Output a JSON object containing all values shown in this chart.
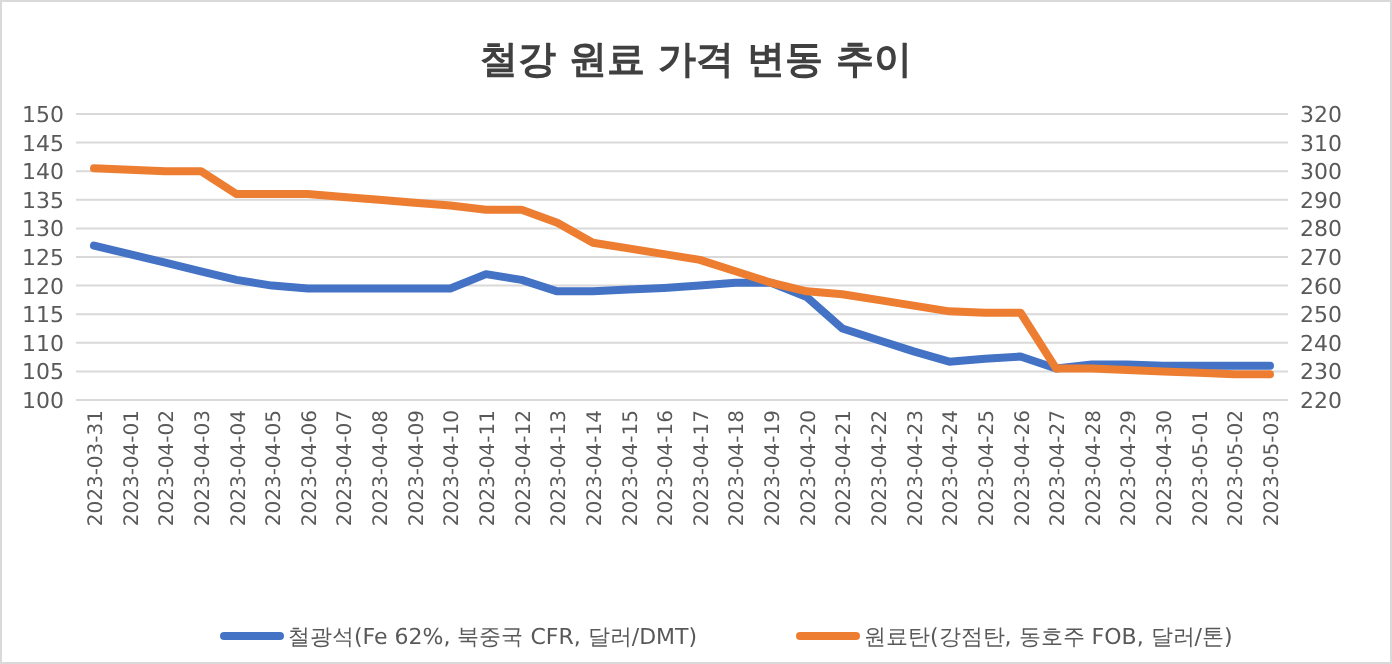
{
  "chart_data": {
    "type": "line",
    "title": "철강 원료 가격 변동 추이",
    "categories": [
      "2023-03-31",
      "2023-04-01",
      "2023-04-02",
      "2023-04-03",
      "2023-04-04",
      "2023-04-05",
      "2023-04-06",
      "2023-04-07",
      "2023-04-08",
      "2023-04-09",
      "2023-04-10",
      "2023-04-11",
      "2023-04-12",
      "2023-04-13",
      "2023-04-14",
      "2023-04-15",
      "2023-04-16",
      "2023-04-17",
      "2023-04-18",
      "2023-04-19",
      "2023-04-20",
      "2023-04-21",
      "2023-04-22",
      "2023-04-23",
      "2023-04-24",
      "2023-04-25",
      "2023-04-26",
      "2023-04-27",
      "2023-04-28",
      "2023-04-29",
      "2023-04-30",
      "2023-05-01",
      "2023-05-02",
      "2023-05-03"
    ],
    "series": [
      {
        "name": "철광석(Fe 62%, 북중국 CFR, 달러/DMT)",
        "color": "#4472c4",
        "values": [
          127,
          125.5,
          124,
          122.5,
          121,
          120,
          119.5,
          119.5,
          119.5,
          119.5,
          119.5,
          122,
          121,
          119,
          119,
          119.3,
          119.6,
          120,
          120.5,
          120.5,
          118,
          112.5,
          110.5,
          108.5,
          106.7,
          107.2,
          107.6,
          105.5,
          106.2,
          106.2,
          106,
          106,
          106,
          106
        ]
      },
      {
        "name": "원료탄(강점탄, 동호주 FOB, 달러/톤)",
        "color": "#ed7d31",
        "axis": "y2",
        "values": [
          301,
          300.5,
          300,
          300,
          292,
          292,
          292,
          291,
          290,
          289,
          288,
          286.5,
          286.5,
          282,
          275,
          273,
          271,
          269,
          265,
          261,
          258,
          257,
          255,
          253,
          251,
          250.5,
          250.5,
          231,
          231,
          230.5,
          230,
          229.5,
          229,
          229
        ]
      }
    ],
    "ylim": [
      100,
      150
    ],
    "yticks": [
      100,
      105,
      110,
      115,
      120,
      125,
      130,
      135,
      140,
      145,
      150
    ],
    "y2lim": [
      220,
      320
    ],
    "y2ticks": [
      220,
      230,
      240,
      250,
      260,
      270,
      280,
      290,
      300,
      310,
      320
    ],
    "grid": "y",
    "legend": "bottom",
    "marker": "none",
    "line_style": "solid"
  }
}
